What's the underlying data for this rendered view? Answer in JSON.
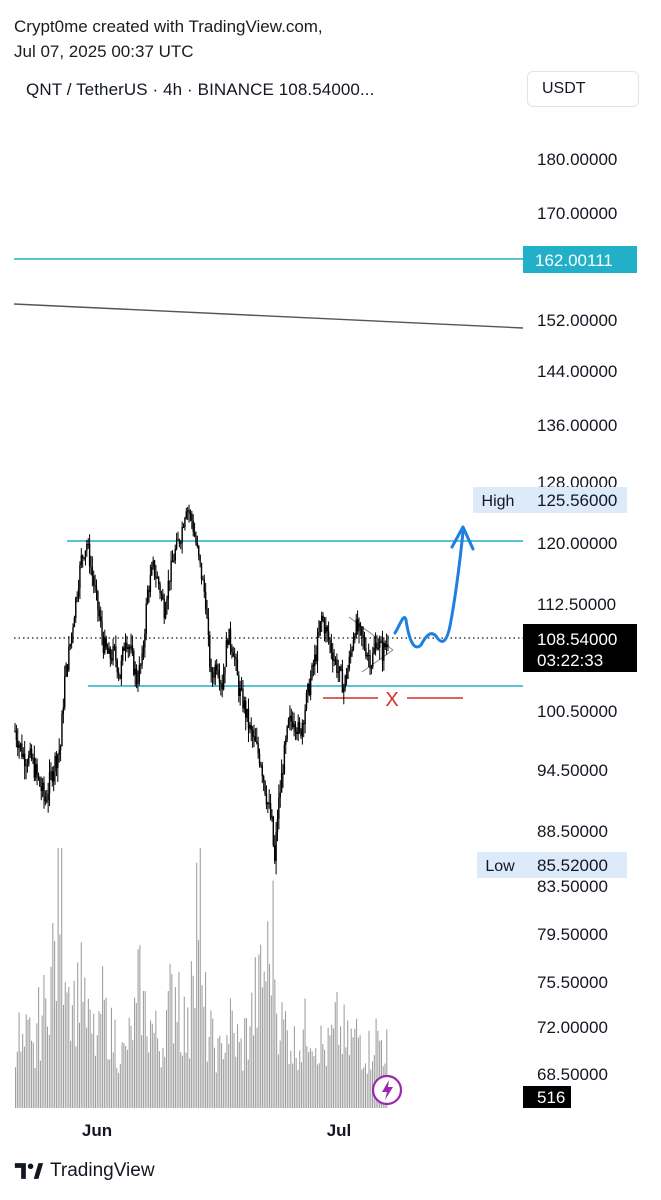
{
  "header": {
    "credit_line1": "Crypt0me created with TradingView.com,",
    "credit_line2": "Jul 07, 2025 00:37 UTC",
    "symbol_line": "QNT / TetherUS · 4h · BINANCE  108.54000...",
    "currency_button": "USDT"
  },
  "footer": {
    "brand": "TradingView"
  },
  "colors": {
    "candle": "#000000",
    "horizontal_line": "#22b0c8",
    "trend_line": "#555555",
    "projection": "#1e7fe0",
    "invalid_mark": "#d32f2f",
    "volume": "#9e9e9e",
    "label_bg": "#dceaf9"
  },
  "icons": [
    "tradingview-logo-icon",
    "lightning-icon"
  ],
  "chart_data": {
    "type": "candlestick",
    "title": "QNT / TetherUS · 4h · BINANCE",
    "axis_currency": "USDT",
    "y_ticks": [
      "180.00000",
      "170.00000",
      "152.00000",
      "144.00000",
      "136.00000",
      "128.00000",
      "120.00000",
      "112.50000",
      "100.50000",
      "94.50000",
      "88.50000",
      "83.50000",
      "79.50000",
      "75.50000",
      "72.00000",
      "68.50000"
    ],
    "x_ticks": [
      "Jun",
      "Jul"
    ],
    "price_markers": {
      "high": {
        "label": "High",
        "value": "125.56000"
      },
      "low": {
        "label": "Low",
        "value": "85.52000"
      },
      "last": {
        "value": "108.54000",
        "countdown": "03:22:33"
      },
      "level": {
        "value": "162.00111"
      },
      "volume": {
        "value": "516"
      }
    },
    "annotations": {
      "horizontal_levels": [
        162.00111,
        120.0,
        103.0
      ],
      "invalid_mark": "X",
      "trend_line": {
        "from": 154.5,
        "to": 151.2
      },
      "projection": "wave path rising toward ~121"
    },
    "price_path": [
      [
        0,
        98.5
      ],
      [
        6,
        96
      ],
      [
        12,
        95.5
      ],
      [
        18,
        93
      ],
      [
        22,
        91.5
      ],
      [
        28,
        95
      ],
      [
        33,
        97
      ],
      [
        36,
        104
      ],
      [
        40,
        108
      ],
      [
        44,
        113
      ],
      [
        48,
        118
      ],
      [
        52,
        120
      ],
      [
        56,
        116
      ],
      [
        60,
        112
      ],
      [
        64,
        108
      ],
      [
        68,
        106.5
      ],
      [
        72,
        107
      ],
      [
        76,
        104.5
      ],
      [
        80,
        109
      ],
      [
        84,
        107
      ],
      [
        88,
        104
      ],
      [
        92,
        106
      ],
      [
        96,
        114
      ],
      [
        100,
        117
      ],
      [
        104,
        115
      ],
      [
        108,
        112
      ],
      [
        112,
        116
      ],
      [
        116,
        119
      ],
      [
        120,
        121
      ],
      [
        124,
        125
      ],
      [
        128,
        123
      ],
      [
        130,
        121
      ],
      [
        134,
        117
      ],
      [
        138,
        113
      ],
      [
        140,
        108
      ],
      [
        142,
        104
      ],
      [
        146,
        106
      ],
      [
        150,
        103.5
      ],
      [
        154,
        109
      ],
      [
        158,
        107.5
      ],
      [
        162,
        103
      ],
      [
        166,
        101
      ],
      [
        170,
        98.5
      ],
      [
        174,
        97
      ],
      [
        178,
        95.5
      ],
      [
        182,
        92
      ],
      [
        186,
        89
      ],
      [
        188,
        85.5
      ],
      [
        190,
        90
      ],
      [
        194,
        95
      ],
      [
        198,
        99
      ],
      [
        202,
        100
      ],
      [
        206,
        98
      ],
      [
        210,
        101
      ],
      [
        214,
        104
      ],
      [
        218,
        107
      ],
      [
        222,
        111
      ],
      [
        226,
        109
      ],
      [
        230,
        107
      ],
      [
        234,
        105
      ],
      [
        238,
        103.2
      ],
      [
        242,
        106
      ],
      [
        246,
        110
      ],
      [
        250,
        109
      ],
      [
        254,
        107.5
      ],
      [
        258,
        106
      ],
      [
        262,
        108.5
      ],
      [
        266,
        107
      ],
      [
        270,
        108.5
      ]
    ],
    "volume_values": [
      30,
      24,
      28,
      22,
      35,
      40,
      55,
      62,
      95,
      70,
      50,
      45,
      60,
      38,
      30,
      28,
      42,
      35,
      30,
      26,
      22,
      28,
      36,
      48,
      40,
      34,
      30,
      27,
      38,
      44,
      52,
      36,
      30,
      75,
      88,
      40,
      30,
      26,
      22,
      30,
      34,
      28,
      24,
      30,
      38,
      46,
      55,
      60,
      70,
      40,
      34,
      30,
      26,
      28,
      32,
      36,
      30,
      26,
      24,
      28,
      34,
      30,
      26,
      28,
      30,
      26,
      24,
      30,
      28,
      26
    ]
  }
}
